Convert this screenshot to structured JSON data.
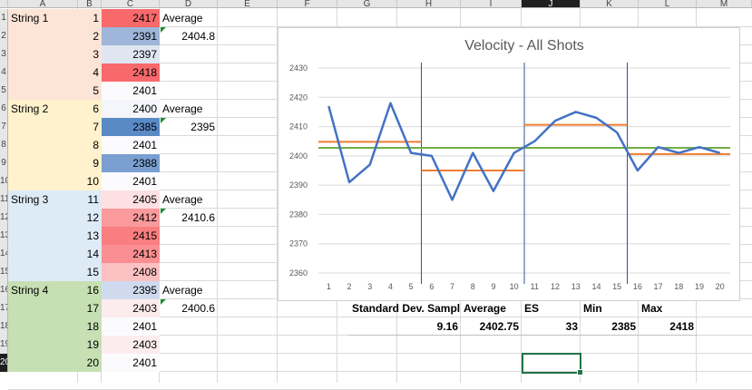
{
  "columns": [
    "A",
    "B",
    "C",
    "D",
    "E",
    "F",
    "G",
    "H",
    "I",
    "J",
    "K",
    "L",
    "M"
  ],
  "selected_column": "J",
  "rows": [
    "1",
    "2",
    "3",
    "4",
    "5",
    "6",
    "7",
    "8",
    "9",
    "10",
    "11",
    "12",
    "13",
    "14",
    "15",
    "16",
    "17",
    "18",
    "19",
    "20"
  ],
  "selected_row": "20",
  "strings": [
    {
      "label": "String 1",
      "color": "#fce4d6"
    },
    {
      "label": "String 2",
      "color": "#fff2cc"
    },
    {
      "label": "String 3",
      "color": "#ddebf7"
    },
    {
      "label": "String 4",
      "color": "#c6e0b4"
    }
  ],
  "shots": [
    {
      "n": "1",
      "v": "2417",
      "color": "#f8696b"
    },
    {
      "n": "2",
      "v": "2391",
      "color": "#9fb5d9"
    },
    {
      "n": "3",
      "v": "2397",
      "color": "#dfe6f2"
    },
    {
      "n": "4",
      "v": "2418",
      "color": "#f8696b"
    },
    {
      "n": "5",
      "v": "2401",
      "color": "#fbfbfe"
    },
    {
      "n": "6",
      "v": "2400",
      "color": "#f4f6fb"
    },
    {
      "n": "7",
      "v": "2385",
      "color": "#5a8ac6"
    },
    {
      "n": "8",
      "v": "2401",
      "color": "#fbfbfe"
    },
    {
      "n": "9",
      "v": "2388",
      "color": "#7a9fd0"
    },
    {
      "n": "10",
      "v": "2401",
      "color": "#fbfbfe"
    },
    {
      "n": "11",
      "v": "2405",
      "color": "#fde0e2"
    },
    {
      "n": "12",
      "v": "2412",
      "color": "#fa9a9c"
    },
    {
      "n": "13",
      "v": "2415",
      "color": "#f97e80"
    },
    {
      "n": "14",
      "v": "2413",
      "color": "#f98f92"
    },
    {
      "n": "15",
      "v": "2408",
      "color": "#fbc0c2"
    },
    {
      "n": "16",
      "v": "2395",
      "color": "#cfdaee"
    },
    {
      "n": "17",
      "v": "2403",
      "color": "#fcecee"
    },
    {
      "n": "18",
      "v": "2401",
      "color": "#fbfbfe"
    },
    {
      "n": "19",
      "v": "2403",
      "color": "#fcecee"
    },
    {
      "n": "20",
      "v": "2401",
      "color": "#fbfbfe"
    }
  ],
  "averages": [
    {
      "label": "Average",
      "value": "2404.8"
    },
    {
      "label": "Average",
      "value": "2395"
    },
    {
      "label": "Average",
      "value": "2410.6"
    },
    {
      "label": "Average",
      "value": "2400.6"
    }
  ],
  "stats": {
    "headers": [
      "Standard Dev. Sampl",
      "Average",
      "ES",
      "Min",
      "Max"
    ],
    "values": [
      "9.16",
      "2402.75",
      "33",
      "2385",
      "2418"
    ]
  },
  "chart_data": {
    "type": "line",
    "title": "Velocity - All Shots",
    "x": [
      1,
      2,
      3,
      4,
      5,
      6,
      7,
      8,
      9,
      10,
      11,
      12,
      13,
      14,
      15,
      16,
      17,
      18,
      19,
      20
    ],
    "x_tick_labels": [
      "1",
      "2",
      "3",
      "4",
      "5",
      "6",
      "7",
      "8",
      "9",
      "10",
      "11",
      "12",
      "13",
      "14",
      "15",
      "16",
      "17",
      "18",
      "19",
      "20"
    ],
    "series": [
      {
        "name": "Velocity",
        "color": "#4472c4",
        "values": [
          2417,
          2391,
          2397,
          2418,
          2401,
          2400,
          2385,
          2401,
          2388,
          2401,
          2405,
          2412,
          2415,
          2413,
          2408,
          2395,
          2403,
          2401,
          2403,
          2401
        ]
      }
    ],
    "string_averages": [
      {
        "from": 1,
        "to": 5,
        "value": 2404.8
      },
      {
        "from": 6,
        "to": 10,
        "value": 2395
      },
      {
        "from": 11,
        "to": 15,
        "value": 2410.6
      },
      {
        "from": 16,
        "to": 20,
        "value": 2400.6
      }
    ],
    "average_line_color": "#ed7d31",
    "overall_average": 2402.75,
    "overall_average_color": "#70ad47",
    "separators_after": [
      5,
      10,
      15
    ],
    "separator_color": "#2e5597",
    "ylim": [
      2360,
      2430
    ],
    "y_ticks": [
      "2360",
      "2370",
      "2380",
      "2390",
      "2400",
      "2410",
      "2420",
      "2430"
    ],
    "grid": true,
    "legend": "none"
  }
}
